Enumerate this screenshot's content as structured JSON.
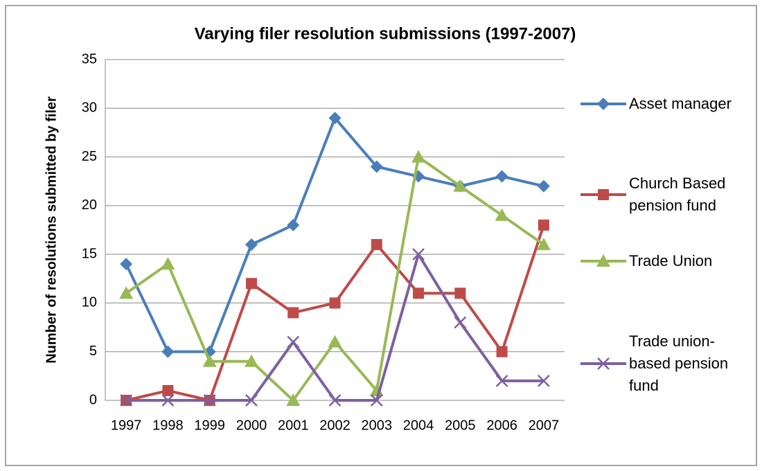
{
  "chart_data": {
    "type": "line",
    "title": "Varying filer resolution submissions (1997-2007)",
    "y_label": "Number of resolutions submitted by filer",
    "categories": [
      "1997",
      "1998",
      "1999",
      "2000",
      "2001",
      "2002",
      "2003",
      "2004",
      "2005",
      "2006",
      "2007"
    ],
    "series": [
      {
        "name": "Asset manager",
        "color": "#4a7ebb",
        "marker": "diamond",
        "values": [
          14,
          5,
          5,
          16,
          18,
          29,
          24,
          23,
          22,
          23,
          22
        ]
      },
      {
        "name": "Church Based pension fund",
        "color": "#be4b48",
        "marker": "square",
        "values": [
          0,
          1,
          0,
          12,
          9,
          10,
          16,
          11,
          11,
          5,
          18
        ]
      },
      {
        "name": "Trade Union",
        "color": "#98b954",
        "marker": "triangle",
        "values": [
          11,
          14,
          4,
          4,
          0,
          6,
          1,
          25,
          22,
          19,
          16
        ]
      },
      {
        "name": "Trade union-based pension fund",
        "color": "#7d60a0",
        "marker": "x",
        "values": [
          0,
          0,
          0,
          0,
          6,
          0,
          0,
          15,
          8,
          2,
          2
        ]
      }
    ],
    "ylim": [
      0,
      35
    ],
    "yticks": [
      0,
      5,
      10,
      15,
      20,
      25,
      30,
      35
    ],
    "grid": true,
    "legend": "right"
  }
}
